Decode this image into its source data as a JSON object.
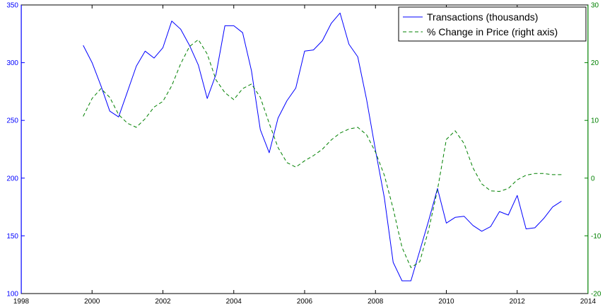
{
  "chart_data": {
    "type": "line",
    "title": "",
    "xlabel": "",
    "ylabel": "",
    "xlim": [
      1998,
      2014
    ],
    "ylim_left": [
      100,
      350
    ],
    "ylim_right": [
      -20,
      30
    ],
    "x_ticks": [
      "1998",
      "2000",
      "2002",
      "2004",
      "2006",
      "2008",
      "2010",
      "2012",
      "2014"
    ],
    "y_left_ticks": [
      "100",
      "150",
      "200",
      "250",
      "300",
      "350"
    ],
    "y_right_ticks": [
      "-20",
      "-10",
      "0",
      "10",
      "20",
      "30"
    ],
    "grid": false,
    "legend_position": "top-right",
    "colors": {
      "left_axis": "#0000ff",
      "right_axis": "#008000",
      "frame": "#000000"
    },
    "series": [
      {
        "name": "Transactions (thousands)",
        "axis": "left",
        "color": "#0000ff",
        "style": "solid",
        "x": [
          1999.75,
          2000.0,
          2000.25,
          2000.5,
          2000.75,
          2001.0,
          2001.25,
          2001.5,
          2001.75,
          2002.0,
          2002.25,
          2002.5,
          2002.75,
          2003.0,
          2003.25,
          2003.5,
          2003.75,
          2004.0,
          2004.25,
          2004.5,
          2004.75,
          2005.0,
          2005.25,
          2005.5,
          2005.75,
          2006.0,
          2006.25,
          2006.5,
          2006.75,
          2007.0,
          2007.25,
          2007.5,
          2007.75,
          2008.0,
          2008.25,
          2008.5,
          2008.75,
          2009.0,
          2009.25,
          2009.5,
          2009.75,
          2010.0,
          2010.25,
          2010.5,
          2010.75,
          2011.0,
          2011.25,
          2011.5,
          2011.75,
          2012.0,
          2012.25,
          2012.5,
          2012.75,
          2013.0,
          2013.25
        ],
        "values": [
          315,
          300,
          280,
          258,
          253,
          275,
          297,
          310,
          304,
          313,
          336,
          329,
          315,
          298,
          269,
          290,
          332,
          332,
          326,
          293,
          242,
          222,
          252,
          267,
          278,
          310,
          311,
          319,
          334,
          343,
          316,
          305,
          268,
          224,
          183,
          127,
          111,
          111,
          137,
          163,
          191,
          161,
          166,
          167,
          159,
          154,
          158,
          171,
          168,
          185,
          156,
          157,
          165,
          175,
          180
        ]
      },
      {
        "name": "% Change in Price (right axis)",
        "axis": "right",
        "color": "#008000",
        "style": "dashed",
        "x": [
          1999.75,
          2000.0,
          2000.25,
          2000.5,
          2000.75,
          2001.0,
          2001.25,
          2001.5,
          2001.75,
          2002.0,
          2002.25,
          2002.5,
          2002.75,
          2003.0,
          2003.25,
          2003.5,
          2003.75,
          2004.0,
          2004.25,
          2004.5,
          2004.75,
          2005.0,
          2005.25,
          2005.5,
          2005.75,
          2006.0,
          2006.25,
          2006.5,
          2006.75,
          2007.0,
          2007.25,
          2007.5,
          2007.75,
          2008.0,
          2008.25,
          2008.5,
          2008.75,
          2009.0,
          2009.25,
          2009.5,
          2009.75,
          2010.0,
          2010.25,
          2010.5,
          2010.75,
          2011.0,
          2011.25,
          2011.5,
          2011.75,
          2012.0,
          2012.25,
          2012.5,
          2012.75,
          2013.0,
          2013.25
        ],
        "values": [
          10.7,
          13.8,
          15.5,
          14,
          11,
          9.5,
          8.8,
          10.3,
          12.3,
          13.3,
          16,
          19.8,
          22.8,
          24,
          21.5,
          17,
          14.8,
          13.6,
          15.5,
          16.3,
          14,
          9.5,
          5.3,
          2.7,
          1.9,
          3,
          3.9,
          5,
          6.6,
          7.8,
          8.5,
          8.8,
          7.5,
          4.5,
          0.5,
          -5.3,
          -12,
          -15.5,
          -14.5,
          -9,
          -2,
          6.7,
          8.2,
          6,
          1.8,
          -1,
          -2.2,
          -2.3,
          -1.8,
          -0.3,
          0.5,
          0.8,
          0.8,
          0.6,
          0.6
        ]
      }
    ]
  }
}
